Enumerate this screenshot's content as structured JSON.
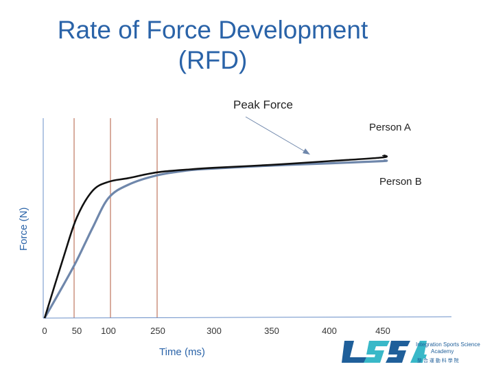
{
  "title_line1": "Rate of Force Development",
  "title_line2": "(RFD)",
  "annotation": "Peak Force",
  "logo_text": "Integration Sports Science Academy",
  "colors": {
    "title": "#2a63a8",
    "person_a": "#111111",
    "person_b": "#6f87ab",
    "vlines": "#b25a3c",
    "axis": "#6a8fc8"
  },
  "chart_data": {
    "type": "line",
    "xlabel": "Time (ms)",
    "ylabel": "Force (N)",
    "x_tick_labels": [
      "0",
      "50",
      "100",
      "250",
      "300",
      "350",
      "400",
      "450"
    ],
    "reference_lines_at": [
      "50",
      "100",
      "250"
    ],
    "series": [
      {
        "name": "Person A",
        "x_index": [
          0,
          0.6,
          1.0,
          1.5,
          2.0,
          2.4,
          3.0,
          3.6,
          4.0,
          5.0,
          6.0,
          7.0,
          7.6
        ],
        "y": [
          0,
          42,
          68,
          86,
          92,
          94.5,
          98.5,
          100.5,
          101.5,
          103.5,
          106,
          108.5,
          110
        ]
      },
      {
        "name": "Person B",
        "x_index": [
          0,
          0.6,
          1.0,
          1.5,
          2.0,
          2.4,
          3.0,
          3.6,
          4.0,
          5.0,
          6.0,
          7.0,
          7.6
        ],
        "y": [
          0,
          23,
          39,
          61,
          81,
          90,
          96.5,
          100,
          101,
          103,
          104.5,
          106,
          106.5
        ]
      }
    ],
    "ylim": [
      0,
      135
    ]
  }
}
